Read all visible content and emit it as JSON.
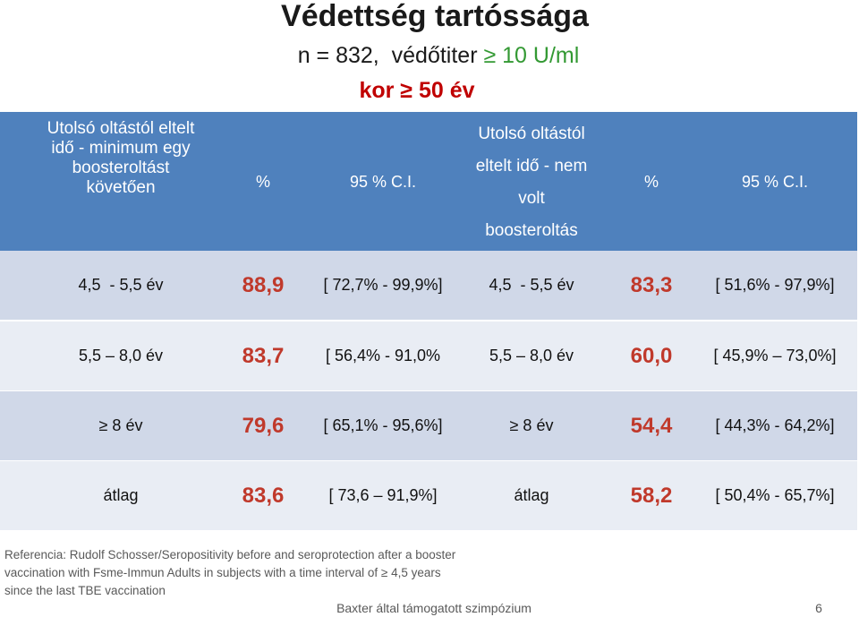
{
  "title": "Védettség tartóssága",
  "subtitle": {
    "prefix": "n = 832,  védőtiter ",
    "threshold": "≥ 10 U/ml"
  },
  "age_group": "kor ≥ 50 év",
  "table": {
    "header": {
      "booster_group_lines": [
        "Utolsó oltástól eltelt",
        "idő - minimum egy",
        "boosteroltást",
        "követően"
      ],
      "booster_percent": "%",
      "booster_ci": "95 % C.I.",
      "no_booster_group_lines": [
        "Utolsó oltástól",
        "eltelt idő - nem",
        "volt",
        "boosteroltás"
      ],
      "no_booster_percent": "%",
      "no_booster_ci": "95 % C.I."
    },
    "rows": [
      {
        "booster_interval": "4,5  - 5,5 év",
        "booster_percent": "88,9",
        "booster_ci": "[ 72,7% - 99,9%]",
        "no_booster_interval": "4,5  - 5,5 év",
        "no_booster_percent": "83,3",
        "no_booster_ci": "[ 51,6% - 97,9%]"
      },
      {
        "booster_interval": "5,5 – 8,0 év",
        "booster_percent": "83,7",
        "booster_ci": "[ 56,4% - 91,0%",
        "no_booster_interval": "5,5 – 8,0 év",
        "no_booster_percent": "60,0",
        "no_booster_ci": "[ 45,9% – 73,0%]"
      },
      {
        "booster_interval": "≥ 8 év",
        "booster_percent": "79,6",
        "booster_ci": "[ 65,1% - 95,6%]",
        "no_booster_interval": "≥ 8 év",
        "no_booster_percent": "54,4",
        "no_booster_ci": "[ 44,3% - 64,2%]"
      },
      {
        "booster_interval": "átlag",
        "booster_percent": "83,6",
        "booster_ci": "[ 73,6 – 91,9%]",
        "no_booster_interval": "átlag",
        "no_booster_percent": "58,2",
        "no_booster_ci": "[ 50,4% - 65,7%]"
      }
    ]
  },
  "reference_lines": [
    "Referencia: Rudolf Schosser/Seropositivity before and seroprotection after a booster",
    "vaccination with Fsme-Immun Adults in subjects with a time interval of ≥ 4,5 years",
    "since the last TBE vaccination"
  ],
  "footer": {
    "sponsor": "Baxter által támogatott szimpózium",
    "page_number": "6"
  },
  "colors": {
    "header_bg": "#4f81bd",
    "row_dark": "#d0d8e8",
    "row_light": "#e9edf4",
    "value_red": "#c0392b",
    "threshold_green": "#339933",
    "age_red": "#c00000",
    "text_gray": "#595959"
  }
}
